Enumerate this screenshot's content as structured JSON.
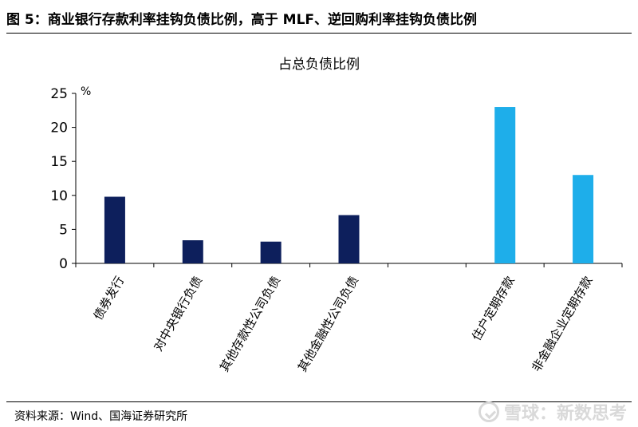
{
  "figure": {
    "title": "图 5：商业银行存款利率挂钩负债比例，高于 MLF、逆回购利率挂钩负债比例",
    "source": "资料来源：Wind、国海证券研究所",
    "watermark": "雪球：新数思考"
  },
  "chart_data": {
    "type": "bar",
    "title": "占总负债比例",
    "unit": "%",
    "ylim": [
      0,
      25
    ],
    "yticks": [
      0,
      5,
      10,
      15,
      20,
      25
    ],
    "categories": [
      "债券发行",
      "对中央银行负债",
      "其他存款性公司负债",
      "其他金融性公司负债",
      "",
      "住户定期存款",
      "非金融企业定期存款"
    ],
    "values": [
      9.8,
      3.4,
      3.2,
      7.1,
      null,
      23.0,
      13.0
    ],
    "colors": [
      "#0d1f5c",
      "#0d1f5c",
      "#0d1f5c",
      "#0d1f5c",
      null,
      "#1eaeea",
      "#1eaeea"
    ],
    "grid": false
  }
}
